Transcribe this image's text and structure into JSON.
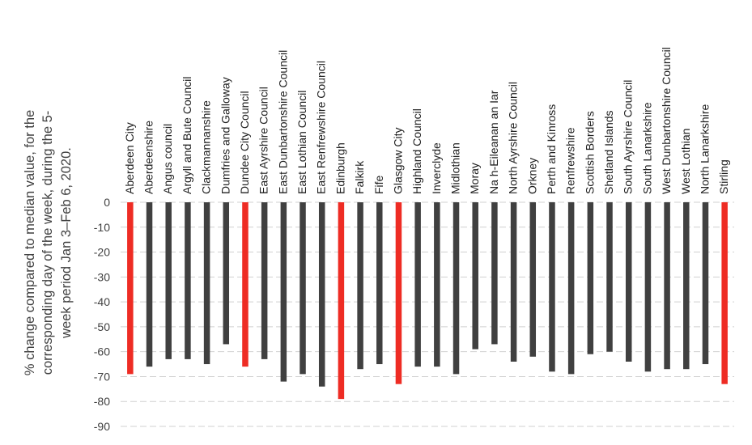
{
  "chart_data": {
    "type": "bar",
    "title": "",
    "xlabel": "",
    "ylabel_lines": [
      "% change compared to median value, for the",
      "corresponding day of the week, during the 5-",
      "week period Jan 3–Feb 6, 2020."
    ],
    "ylim": [
      -90,
      0
    ],
    "yticks": [
      0,
      -10,
      -20,
      -30,
      -40,
      -50,
      -60,
      -70,
      -80,
      -90
    ],
    "grid": true,
    "legend": "none",
    "colors": {
      "default": "#404040",
      "highlight": "#ee2c24"
    },
    "categories": [
      "Aberdeen City",
      "Aberdeenshire",
      "Angus council",
      "Argyll and Bute Council",
      "Clackmannanshire",
      "Dumfries and Galloway",
      "Dundee City Council",
      "East Ayrshire Council",
      "East Dunbartonshire Council",
      "East Lothian Council",
      "East Renfrewshire Council",
      "Edinburgh",
      "Falkirk",
      "Fife",
      "Glasgow City",
      "Highland Council",
      "Inverclyde",
      "Midlothian",
      "Moray",
      "Na h-Eileanan an Iar",
      "North Ayrshire Council",
      "Orkney",
      "Perth and Kinross",
      "Renfrewshire",
      "Scottish Borders",
      "Shetland Islands",
      "South Ayrshire Council",
      "South Lanarkshire",
      "West Dunbartonshire Council",
      "West Lothian",
      "North Lanarkshire",
      "Stirling"
    ],
    "values": [
      -69,
      -66,
      -63,
      -63,
      -65,
      -57,
      -66,
      -63,
      -72,
      -69,
      -74,
      -79,
      -67,
      -65,
      -73,
      -66,
      -66,
      -69,
      -59,
      -57,
      -64,
      -62,
      -68,
      -69,
      -61,
      -60,
      -64,
      -68,
      -67,
      -67,
      -65,
      -73
    ],
    "highlighted": [
      true,
      false,
      false,
      false,
      false,
      false,
      true,
      false,
      false,
      false,
      false,
      true,
      false,
      false,
      true,
      false,
      false,
      false,
      false,
      false,
      false,
      false,
      false,
      false,
      false,
      false,
      false,
      false,
      false,
      false,
      false,
      true
    ]
  }
}
